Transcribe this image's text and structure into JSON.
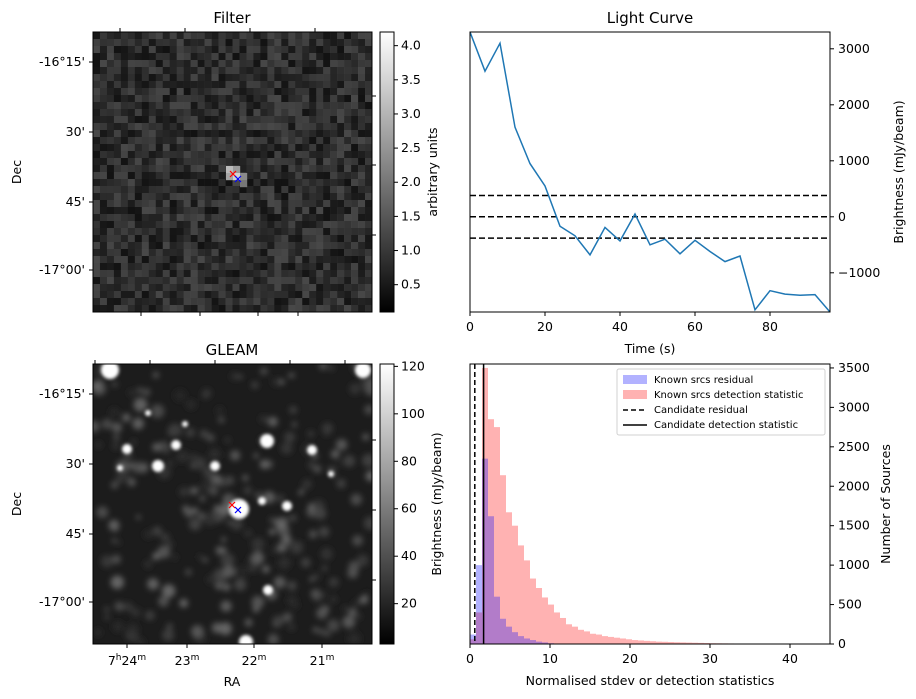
{
  "panels": {
    "filter": {
      "title": "Filter",
      "ylabel": "Dec",
      "dec_ticks": [
        "-16°15'",
        "30'",
        "45'",
        "-17°00'"
      ],
      "colorbar_label": "arbitrary units",
      "colorbar_ticks": [
        "4.0",
        "3.5",
        "3.0",
        "2.5",
        "2.0",
        "1.5",
        "1.0",
        "0.5"
      ],
      "colorbar_range": [
        0.1,
        4.2
      ]
    },
    "gleam": {
      "title": "GLEAM",
      "ylabel": "Dec",
      "xlabel": "RA",
      "dec_ticks": [
        "-16°15'",
        "30'",
        "45'",
        "-17°00'"
      ],
      "ra_ticks": [
        {
          "main": "7",
          "sup1": "h",
          "mid": "24",
          "sup2": "m"
        },
        {
          "main": "",
          "sup1": "",
          "mid": "23",
          "sup2": "m"
        },
        {
          "main": "",
          "sup1": "",
          "mid": "22",
          "sup2": "m"
        },
        {
          "main": "",
          "sup1": "",
          "mid": "21",
          "sup2": "m"
        }
      ],
      "colorbar_label": "Brightness (mJy/beam)",
      "colorbar_ticks": [
        "120",
        "100",
        "80",
        "60",
        "40",
        "20"
      ],
      "colorbar_range": [
        3,
        121
      ]
    }
  },
  "colors": {
    "line": "#1f77b4",
    "residual_hist": "#0000ff",
    "detection_hist": "#ff0000",
    "marker_red": "#ff0000",
    "marker_blue": "#0000ff"
  },
  "chart_data": [
    {
      "type": "line",
      "title": "Light Curve",
      "xlabel": "Time (s)",
      "ylabel": "Brightness (mJy/beam)",
      "xlim": [
        0,
        96
      ],
      "ylim": [
        -1700,
        3300
      ],
      "x_ticks": [
        "0",
        "20",
        "40",
        "60",
        "80"
      ],
      "y_ticks": [
        "3000",
        "2000",
        "1000",
        "0",
        "−1000"
      ],
      "x": [
        0,
        4,
        8,
        12,
        16,
        20,
        24,
        28,
        32,
        36,
        40,
        44,
        48,
        52,
        56,
        60,
        64,
        68,
        72,
        76,
        80,
        84,
        88,
        92,
        96
      ],
      "y": [
        3300,
        2600,
        3100,
        1600,
        950,
        550,
        -170,
        -340,
        -680,
        -190,
        -430,
        50,
        -500,
        -400,
        -660,
        -420,
        -620,
        -800,
        -700,
        -1660,
        -1320,
        -1380,
        -1400,
        -1390,
        -1700
      ],
      "hlines": [
        380,
        0,
        -380
      ]
    },
    {
      "type": "bar",
      "xlabel": "Normalised stdev or detection statistics",
      "ylabel": "Number of Sources",
      "xlim": [
        0,
        45
      ],
      "ylim": [
        0,
        3550
      ],
      "x_ticks": [
        "0",
        "10",
        "20",
        "30",
        "40"
      ],
      "y_ticks": [
        "0",
        "500",
        "1000",
        "1500",
        "2000",
        "2500",
        "3000",
        "3500"
      ],
      "bin_width": 0.75,
      "legend_position": "top-right",
      "series": [
        {
          "name": "Known srcs residual",
          "values": [
            120,
            1000,
            2350,
            1620,
            600,
            320,
            220,
            150,
            100,
            70,
            50,
            30,
            20,
            10
          ]
        },
        {
          "name": "Known srcs detection statistic",
          "values": [
            60,
            400,
            3500,
            2850,
            2750,
            2140,
            1670,
            1500,
            1250,
            1060,
            830,
            710,
            590,
            500,
            400,
            330,
            250,
            220,
            180,
            160,
            130,
            120,
            100,
            90,
            80,
            70,
            60,
            50,
            45,
            40,
            35,
            30,
            28,
            25,
            22,
            20,
            18,
            16,
            14,
            12,
            10,
            9,
            8,
            7,
            6,
            6,
            5,
            5,
            4,
            4,
            3,
            3,
            3,
            2,
            2,
            2,
            2,
            1,
            1,
            1
          ]
        },
        {
          "name": "Candidate residual",
          "value": 0.6
        },
        {
          "name": "Candidate detection statistic",
          "value": 1.7
        }
      ]
    }
  ]
}
